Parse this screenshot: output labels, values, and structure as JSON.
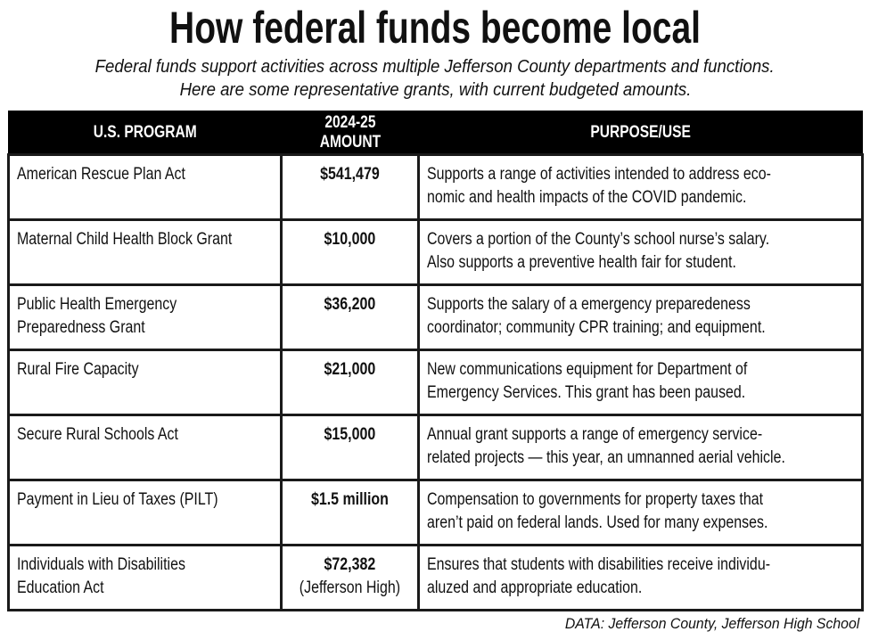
{
  "title": "How federal funds become local",
  "subtitle": [
    "Federal funds support activities across multiple Jefferson County departments and functions.",
    "Here are some representative grants, with current budgeted amounts."
  ],
  "headers": [
    "U.S. PROGRAM",
    "2024-25 AMOUNT",
    "PURPOSE/USE"
  ],
  "rows": [
    {
      "program": [
        "American Rescue Plan Act"
      ],
      "amount": [
        "$541,479"
      ],
      "purpose": [
        "Supports a range of activities intended to address eco-",
        "nomic and health impacts of the COVID pandemic."
      ]
    },
    {
      "program": [
        "Maternal Child Health Block Grant"
      ],
      "amount": [
        "$10,000"
      ],
      "purpose": [
        "Covers a portion of the County’s school nurse’s salary.",
        "Also supports a preventive health fair for student."
      ]
    },
    {
      "program": [
        "Public Health Emergency",
        "Preparedness Grant"
      ],
      "amount": [
        "$36,200"
      ],
      "purpose": [
        "Supports the salary of a emergency preparedeness",
        "coordinator; community CPR training; and equipment."
      ]
    },
    {
      "program": [
        "Rural Fire Capacity"
      ],
      "amount": [
        "$21,000"
      ],
      "purpose": [
        "New communications equipment for Department of",
        "Emergency Services. This grant has been paused."
      ]
    },
    {
      "program": [
        "Secure Rural Schools Act"
      ],
      "amount": [
        "$15,000"
      ],
      "purpose": [
        "Annual grant supports a range of emergency service-",
        "related projects — this year, an umnanned aerial vehicle."
      ]
    },
    {
      "program": [
        "Payment in Lieu of Taxes (PILT)"
      ],
      "amount": [
        "$1.5 million"
      ],
      "purpose": [
        "Compensation to governments for property taxes that",
        "aren’t paid on federal lands. Used for many expenses."
      ]
    },
    {
      "program": [
        "Individuals with Disabilities",
        "Education Act"
      ],
      "amount": [
        "$72,382",
        "(Jefferson High)"
      ],
      "purpose": [
        "Ensures that students with disabilities receive individu-",
        "aluzed and appropriate education."
      ]
    }
  ],
  "source": "DATA: Jefferson County, Jefferson High School"
}
